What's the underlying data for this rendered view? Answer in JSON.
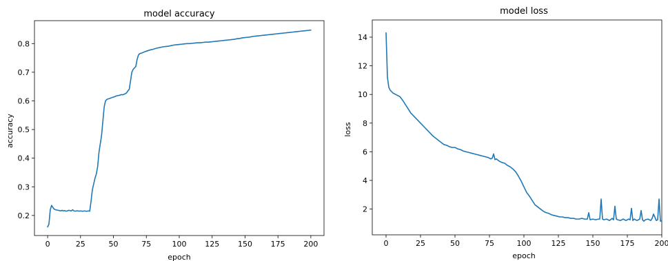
{
  "chart_data": [
    {
      "type": "line",
      "title": "model accuracy",
      "xlabel": "epoch",
      "ylabel": "accuracy",
      "xlim": [
        -10,
        210
      ],
      "ylim": [
        0.13,
        0.88
      ],
      "xticks": [
        0,
        25,
        50,
        75,
        100,
        125,
        150,
        175,
        200
      ],
      "yticks": [
        0.2,
        0.3,
        0.4,
        0.5,
        0.6,
        0.7,
        0.8
      ],
      "ytick_labels": [
        "0.2",
        "0.3",
        "0.4",
        "0.5",
        "0.6",
        "0.7",
        "0.8"
      ],
      "grid": false,
      "color": "#1f77b4",
      "series": [
        {
          "x": [
            0,
            1,
            2,
            3,
            4,
            5,
            6,
            7,
            8,
            9,
            10,
            11,
            12,
            13,
            14,
            15,
            16,
            17,
            18,
            19,
            20,
            21,
            22,
            23,
            24,
            25,
            26,
            27,
            28,
            29,
            30,
            31,
            32,
            33,
            34,
            35,
            36,
            37,
            38,
            39,
            40,
            41,
            42,
            43,
            44,
            45,
            46,
            47,
            48,
            49,
            50,
            51,
            52,
            53,
            54,
            55,
            56,
            57,
            58,
            59,
            60,
            61,
            62,
            63,
            64,
            65,
            66,
            67,
            68,
            69,
            70,
            72,
            74,
            76,
            78,
            80,
            82,
            84,
            86,
            88,
            90,
            92,
            94,
            96,
            98,
            100,
            102,
            104,
            106,
            108,
            110,
            112,
            114,
            116,
            118,
            120,
            122,
            124,
            126,
            128,
            130,
            132,
            134,
            136,
            138,
            140,
            142,
            144,
            146,
            148,
            150,
            152,
            154,
            156,
            158,
            160,
            162,
            164,
            166,
            168,
            170,
            172,
            174,
            176,
            178,
            180,
            182,
            184,
            186,
            188,
            190,
            192,
            194,
            196,
            198,
            200
          ],
          "y": [
            0.16,
            0.17,
            0.22,
            0.235,
            0.228,
            0.222,
            0.22,
            0.219,
            0.218,
            0.217,
            0.216,
            0.218,
            0.216,
            0.217,
            0.215,
            0.216,
            0.218,
            0.217,
            0.216,
            0.22,
            0.216,
            0.215,
            0.216,
            0.216,
            0.215,
            0.216,
            0.215,
            0.215,
            0.216,
            0.215,
            0.215,
            0.216,
            0.215,
            0.25,
            0.29,
            0.31,
            0.33,
            0.345,
            0.37,
            0.42,
            0.45,
            0.48,
            0.53,
            0.58,
            0.6,
            0.605,
            0.607,
            0.608,
            0.61,
            0.612,
            0.613,
            0.615,
            0.617,
            0.618,
            0.619,
            0.62,
            0.622,
            0.621,
            0.623,
            0.625,
            0.628,
            0.635,
            0.64,
            0.67,
            0.7,
            0.71,
            0.715,
            0.72,
            0.745,
            0.76,
            0.765,
            0.768,
            0.772,
            0.775,
            0.778,
            0.78,
            0.783,
            0.785,
            0.787,
            0.789,
            0.79,
            0.791,
            0.793,
            0.795,
            0.796,
            0.797,
            0.798,
            0.799,
            0.8,
            0.8,
            0.801,
            0.802,
            0.803,
            0.803,
            0.804,
            0.805,
            0.805,
            0.806,
            0.807,
            0.808,
            0.809,
            0.81,
            0.811,
            0.812,
            0.813,
            0.814,
            0.815,
            0.817,
            0.818,
            0.82,
            0.821,
            0.822,
            0.823,
            0.825,
            0.826,
            0.827,
            0.828,
            0.829,
            0.83,
            0.831,
            0.832,
            0.833,
            0.834,
            0.835,
            0.836,
            0.837,
            0.838,
            0.839,
            0.84,
            0.841,
            0.842,
            0.843,
            0.844,
            0.845,
            0.846,
            0.847
          ]
        }
      ]
    },
    {
      "type": "line",
      "title": "model loss",
      "xlabel": "epoch",
      "ylabel": "loss",
      "xlim": [
        -10,
        200
      ],
      "ylim": [
        0.2,
        15.2
      ],
      "xticks": [
        0,
        25,
        50,
        75,
        100,
        125,
        150,
        175,
        200
      ],
      "yticks": [
        2,
        4,
        6,
        8,
        10,
        12,
        14
      ],
      "ytick_labels": [
        "2",
        "4",
        "6",
        "8",
        "10",
        "12",
        "14"
      ],
      "grid": false,
      "color": "#1f77b4",
      "series": [
        {
          "x": [
            0,
            1,
            2,
            3,
            4,
            5,
            6,
            7,
            8,
            9,
            10,
            12,
            14,
            16,
            18,
            20,
            22,
            24,
            26,
            28,
            30,
            32,
            34,
            36,
            38,
            40,
            42,
            44,
            46,
            48,
            50,
            52,
            54,
            56,
            58,
            60,
            62,
            64,
            66,
            68,
            70,
            72,
            74,
            76,
            77,
            78,
            79,
            80,
            82,
            84,
            86,
            88,
            90,
            92,
            94,
            96,
            98,
            100,
            102,
            104,
            106,
            108,
            110,
            112,
            114,
            116,
            118,
            120,
            122,
            124,
            126,
            128,
            130,
            132,
            134,
            136,
            138,
            140,
            142,
            144,
            146,
            147,
            148,
            150,
            152,
            154,
            155,
            156,
            157,
            158,
            160,
            162,
            164,
            165,
            166,
            167,
            168,
            170,
            172,
            174,
            176,
            177,
            178,
            179,
            180,
            182,
            184,
            185,
            186,
            187,
            188,
            190,
            192,
            193,
            194,
            196,
            197,
            198,
            199,
            200
          ],
          "y": [
            14.3,
            11.2,
            10.5,
            10.3,
            10.2,
            10.1,
            10.05,
            10.0,
            9.95,
            9.9,
            9.85,
            9.6,
            9.3,
            9.0,
            8.7,
            8.5,
            8.3,
            8.1,
            7.9,
            7.7,
            7.5,
            7.3,
            7.1,
            6.95,
            6.8,
            6.65,
            6.5,
            6.45,
            6.35,
            6.3,
            6.3,
            6.2,
            6.15,
            6.05,
            6.0,
            5.95,
            5.9,
            5.85,
            5.8,
            5.75,
            5.7,
            5.65,
            5.6,
            5.5,
            5.55,
            5.85,
            5.45,
            5.5,
            5.35,
            5.25,
            5.2,
            5.05,
            4.95,
            4.8,
            4.6,
            4.3,
            3.95,
            3.55,
            3.15,
            2.9,
            2.6,
            2.3,
            2.15,
            2.0,
            1.85,
            1.75,
            1.7,
            1.6,
            1.55,
            1.5,
            1.45,
            1.45,
            1.4,
            1.4,
            1.35,
            1.35,
            1.3,
            1.3,
            1.35,
            1.3,
            1.3,
            1.75,
            1.25,
            1.3,
            1.25,
            1.3,
            1.3,
            2.7,
            1.3,
            1.25,
            1.3,
            1.2,
            1.35,
            1.25,
            2.2,
            1.3,
            1.25,
            1.2,
            1.3,
            1.2,
            1.3,
            1.25,
            2.05,
            1.2,
            1.3,
            1.2,
            1.3,
            1.9,
            1.25,
            1.15,
            1.25,
            1.3,
            1.2,
            1.35,
            1.65,
            1.2,
            1.25,
            2.7,
            1.15,
            1.2
          ]
        }
      ]
    }
  ]
}
